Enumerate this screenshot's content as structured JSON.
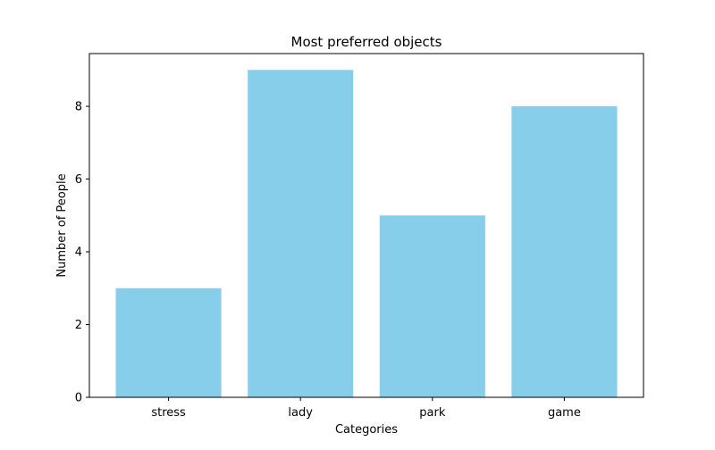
{
  "chart_data": {
    "type": "bar",
    "title": "Most preferred objects",
    "xlabel": "Categories",
    "ylabel": "Number of People",
    "categories": [
      "stress",
      "lady",
      "park",
      "game"
    ],
    "values": [
      3,
      9,
      5,
      8
    ],
    "ylim": [
      0,
      9.45
    ],
    "yticks": [
      0,
      2,
      4,
      6,
      8
    ],
    "bar_color": "#87ceeb",
    "grid": false,
    "legend": "none"
  }
}
